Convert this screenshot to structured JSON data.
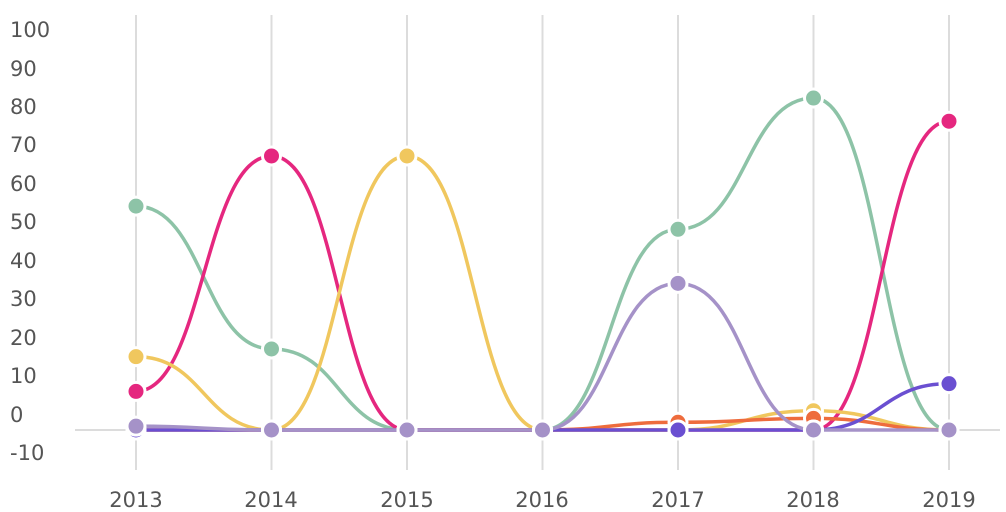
{
  "chart_data": {
    "type": "line",
    "categories": [
      "2013",
      "2014",
      "2015",
      "2016",
      "2017",
      "2018",
      "2019"
    ],
    "y_ticks": [
      "100",
      "90",
      "80",
      "70",
      "60",
      "50",
      "40",
      "30",
      "20",
      "10",
      "0",
      "-10"
    ],
    "ylim": [
      -10,
      100
    ],
    "grid": "vertical",
    "series": [
      {
        "color": "#8dc3a7",
        "values": [
          58,
          21,
          0,
          0,
          52,
          86,
          0
        ]
      },
      {
        "color": "#e5277f",
        "values": [
          10,
          71,
          0,
          0,
          0,
          0,
          80
        ]
      },
      {
        "color": "#f0c75e",
        "values": [
          19,
          0,
          71,
          0,
          0,
          5,
          0
        ]
      },
      {
        "color": "#ee6c3d",
        "values": [
          0,
          0,
          0,
          0,
          2,
          3,
          0
        ]
      },
      {
        "color": "#6a4fd1",
        "values": [
          0,
          0,
          0,
          0,
          0,
          0,
          12
        ]
      },
      {
        "color": "#a592c8",
        "values": [
          1,
          0,
          0,
          0,
          38,
          0,
          0
        ]
      }
    ]
  }
}
